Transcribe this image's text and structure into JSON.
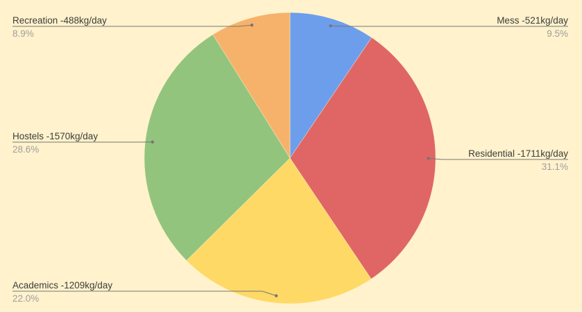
{
  "chart_data": {
    "type": "pie",
    "start_angle": "top, clockwise",
    "legend": "labeled leader lines",
    "slices": [
      {
        "label": "Mess -521kg/day",
        "value": 521,
        "percent": "9.5%",
        "color": "#6d9eeb",
        "side": "right"
      },
      {
        "label": "Residential -1711kg/day",
        "value": 1711,
        "percent": "31.1%",
        "color": "#e06666",
        "side": "right"
      },
      {
        "label": "Academics -1209kg/day",
        "value": 1209,
        "percent": "22.0%",
        "color": "#ffd966",
        "side": "left"
      },
      {
        "label": "Hostels -1570kg/day",
        "value": 1570,
        "percent": "28.6%",
        "color": "#93c47d",
        "side": "left"
      },
      {
        "label": "Recreation -488kg/day",
        "value": 488,
        "percent": "8.9%",
        "color": "#f6b26b",
        "side": "left"
      }
    ]
  },
  "colors": {
    "background": "#fff2cc",
    "leader_line": "#757575"
  }
}
